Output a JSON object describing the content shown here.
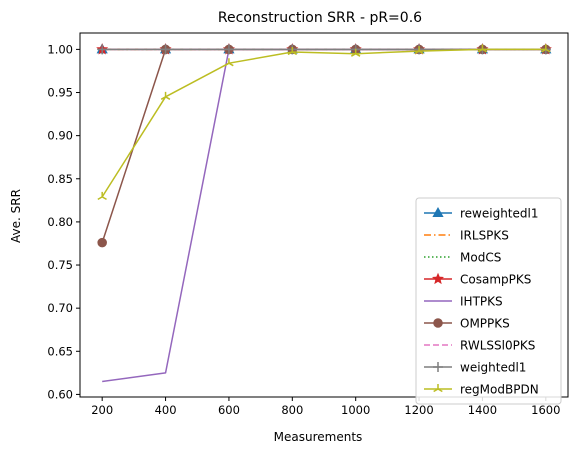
{
  "chart_data": {
    "type": "line",
    "title": "Reconstruction SRR - pR=0.6",
    "xlabel": "Measurements",
    "ylabel": "Ave. SRR",
    "x": [
      200,
      400,
      600,
      800,
      1000,
      1200,
      1400,
      1600
    ],
    "xlim": [
      130,
      1670
    ],
    "ylim": [
      0.597,
      1.019
    ],
    "xticks": [
      200,
      400,
      600,
      800,
      1000,
      1200,
      1400,
      1600
    ],
    "yticks": [
      0.6,
      0.65,
      0.7,
      0.75,
      0.8,
      0.85,
      0.9,
      0.95,
      1.0
    ],
    "ytick_labels": [
      "0.60",
      "0.65",
      "0.70",
      "0.75",
      "0.80",
      "0.85",
      "0.90",
      "0.95",
      "1.00"
    ],
    "grid": false,
    "legend_position": "lower-right",
    "series": [
      {
        "name": "reweightedl1",
        "color": "#1f77b4",
        "marker": "triangle",
        "dash": "solid",
        "values": [
          1.0,
          1.0,
          1.0,
          1.0,
          1.0,
          1.0,
          1.0,
          1.0
        ]
      },
      {
        "name": "IRLSPKS",
        "color": "#ff7f0e",
        "marker": "none",
        "dash": "dashdot",
        "values": [
          1.0,
          1.0,
          1.0,
          1.0,
          1.0,
          1.0,
          1.0,
          1.0
        ]
      },
      {
        "name": "ModCS",
        "color": "#2ca02c",
        "marker": "none",
        "dash": "dotted",
        "values": [
          1.0,
          1.0,
          1.0,
          1.0,
          1.0,
          1.0,
          1.0,
          1.0
        ]
      },
      {
        "name": "CosampPKS",
        "color": "#d62728",
        "marker": "star",
        "dash": "solid",
        "values": [
          1.0,
          1.0,
          1.0,
          1.0,
          1.0,
          1.0,
          1.0,
          1.0
        ]
      },
      {
        "name": "IHTPKS",
        "color": "#9467bd",
        "marker": "none",
        "dash": "solid",
        "values": [
          0.615,
          0.625,
          1.0,
          1.0,
          1.0,
          1.0,
          1.0,
          1.0
        ]
      },
      {
        "name": "OMPPKS",
        "color": "#8c564b",
        "marker": "circle",
        "dash": "solid",
        "values": [
          0.776,
          1.0,
          1.0,
          1.0,
          1.0,
          1.0,
          1.0,
          1.0
        ]
      },
      {
        "name": "RWLSSl0PKS",
        "color": "#e377c2",
        "marker": "none",
        "dash": "dashed",
        "values": [
          1.0,
          1.0,
          1.0,
          1.0,
          1.0,
          1.0,
          1.0,
          1.0
        ]
      },
      {
        "name": "weightedl1",
        "color": "#7f7f7f",
        "marker": "plus",
        "dash": "solid",
        "values": [
          1.0,
          1.0,
          1.0,
          1.0,
          1.0,
          1.0,
          1.0,
          1.0
        ]
      },
      {
        "name": "regModBPDN",
        "color": "#bcbd22",
        "marker": "tri",
        "dash": "solid",
        "values": [
          0.829,
          0.945,
          0.984,
          0.997,
          0.995,
          0.998,
          1.0,
          1.0
        ]
      }
    ]
  }
}
